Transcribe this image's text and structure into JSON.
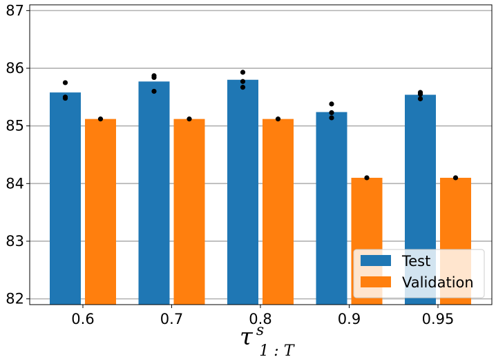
{
  "chart_data": {
    "type": "bar",
    "categories": [
      "0.6",
      "0.7",
      "0.8",
      "0.9",
      "0.95"
    ],
    "series": [
      {
        "name": "Test",
        "color": "#1f77b4",
        "values": [
          85.58,
          85.77,
          85.8,
          85.24,
          85.54
        ],
        "points": [
          [
            85.75,
            85.5,
            85.48
          ],
          [
            85.87,
            85.84,
            85.6
          ],
          [
            85.93,
            85.77,
            85.67
          ],
          [
            85.38,
            85.23,
            85.14
          ],
          [
            85.58,
            85.55,
            85.47
          ]
        ]
      },
      {
        "name": "Validation",
        "color": "#ff7f0e",
        "values": [
          85.12,
          85.12,
          85.12,
          84.1,
          84.1
        ],
        "points": [
          [
            85.12
          ],
          [
            85.12
          ],
          [
            85.12
          ],
          [
            84.1
          ],
          [
            84.1
          ]
        ]
      }
    ],
    "yticks": [
      "82",
      "83",
      "84",
      "85",
      "86",
      "87"
    ],
    "ylim": [
      81.9,
      87.1
    ],
    "grid": true,
    "legend": "lower-right",
    "xlabel_base": "τ",
    "xlabel_sup": "s",
    "xlabel_sub": "1 : T",
    "ylabel": ""
  }
}
